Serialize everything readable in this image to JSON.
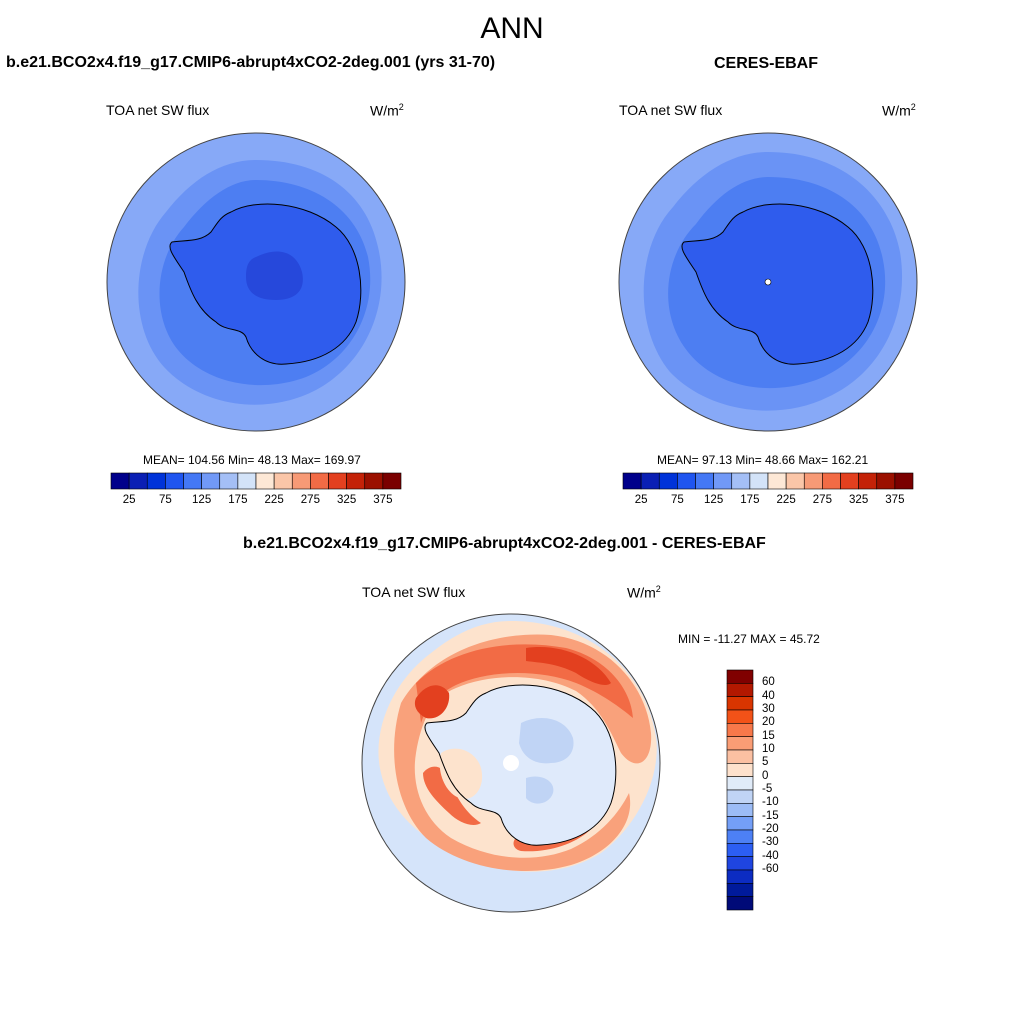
{
  "figure": {
    "title": "ANN",
    "left_panel": {
      "title": "b.e21.BCO2x4.f19_g17.CMIP6-abrupt4xCO2-2deg.001 (yrs 31-70)",
      "variable": "TOA net SW flux",
      "units_base": "W/m",
      "units_exp": "2",
      "stats": "MEAN= 104.56  Min=  48.13  Max= 169.97"
    },
    "right_panel": {
      "title": "CERES-EBAF",
      "variable": "TOA net SW flux",
      "units_base": "W/m",
      "units_exp": "2",
      "stats": "MEAN=  97.13  Min=  48.66  Max= 162.21"
    },
    "diff_panel": {
      "title": "b.e21.BCO2x4.f19_g17.CMIP6-abrupt4xCO2-2deg.001 - CERES-EBAF",
      "variable": "TOA net SW flux",
      "units_base": "W/m",
      "units_exp": "2",
      "stats": "MIN = -11.27 MAX =  45.72"
    }
  },
  "colorbar_flux": {
    "colors": [
      "#00008b",
      "#0a1fb4",
      "#0033d9",
      "#1f55f0",
      "#4478f5",
      "#7199f7",
      "#a4bff6",
      "#d3e3f8",
      "#fde8d6",
      "#fbc6a8",
      "#f79a76",
      "#f26b45",
      "#e3401f",
      "#c42208",
      "#9b1000",
      "#7a0000"
    ],
    "tick_labels": [
      "25",
      "75",
      "125",
      "175",
      "225",
      "275",
      "325",
      "375"
    ]
  },
  "colorbar_diff": {
    "colors_top_to_bottom": [
      "#800000",
      "#b31800",
      "#d93500",
      "#f25218",
      "#f7784a",
      "#fa9d75",
      "#fbc0a2",
      "#fde1cc",
      "#e0ebf8",
      "#c0d4f5",
      "#9cbcf6",
      "#749ff7",
      "#4d80f5",
      "#2c5ef3",
      "#1f45e0",
      "#0c2cc2",
      "#001a9b",
      "#000a78"
    ],
    "labels_top_to_bottom": [
      "60",
      "40",
      "30",
      "20",
      "15",
      "10",
      "5",
      "0",
      "-5",
      "-10",
      "-15",
      "-20",
      "-30",
      "-40",
      "-60"
    ]
  },
  "map_colors": {
    "flux_outer": "#87a9f7",
    "flux_mid": "#6a93f5",
    "flux_inner": "#4d7ef2",
    "flux_ice": "#2f5ced",
    "flux_ice_deep": "#2648db",
    "diff_bg": "#d5e4fa",
    "diff_land": "#dfeafb",
    "diff_warm1": "#fde3cd",
    "diff_warm2": "#f9a17b",
    "diff_warm3": "#f26b45",
    "diff_warm4": "#e3401f",
    "diff_cool": "#c0d4f5"
  }
}
